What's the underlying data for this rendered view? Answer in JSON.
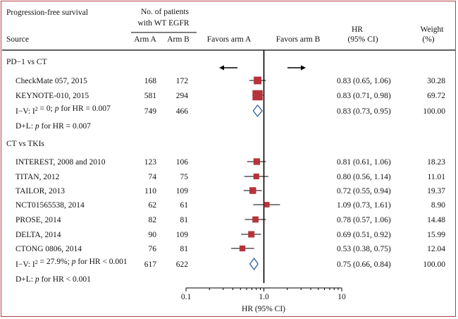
{
  "chart_data": {
    "type": "forest",
    "title": "Progression-free survival",
    "header": {
      "source": "Source",
      "patients_line1": "No. of  patients",
      "patients_line2": "with WT EGFR",
      "arm_a": "Arm A",
      "arm_b": "Arm B",
      "favors_a": "Favors arm A",
      "favors_b": "Favors arm B",
      "hr_line1": "HR",
      "hr_line2": "(95% CI)",
      "weight_line1": "Weight",
      "weight_line2": "(%)"
    },
    "groups": [
      {
        "name": "PD−1 vs CT",
        "studies": [
          {
            "name": "CheckMate 057, 2015",
            "arm_a": "168",
            "arm_b": "172",
            "hr": 0.83,
            "lo": 0.65,
            "hi": 1.06,
            "hr_text": "0.83 (0.65, 1.06)",
            "weight": 30.28,
            "weight_text": "30.28"
          },
          {
            "name": "KEYNOTE-010, 2015",
            "arm_a": "581",
            "arm_b": "294",
            "hr": 0.83,
            "lo": 0.71,
            "hi": 0.98,
            "hr_text": "0.83 (0.71, 0.98)",
            "weight": 69.72,
            "weight_text": "69.72"
          }
        ],
        "pooled": {
          "label": "I−V: I² = 0; p for HR = 0.007",
          "arm_a": "749",
          "arm_b": "466",
          "hr": 0.83,
          "lo": 0.73,
          "hi": 0.95,
          "hr_text": "0.83 (0.73, 0.95)",
          "weight_text": "100.00"
        },
        "dl": "D+L: p for HR = 0.007"
      },
      {
        "name": "CT vs TKIs",
        "studies": [
          {
            "name": "INTEREST, 2008 and 2010",
            "arm_a": "123",
            "arm_b": "106",
            "hr": 0.81,
            "lo": 0.61,
            "hi": 1.06,
            "hr_text": "0.81 (0.61, 1.06)",
            "weight": 18.23,
            "weight_text": "18.23"
          },
          {
            "name": "TITAN, 2012",
            "arm_a": "74",
            "arm_b": "75",
            "hr": 0.8,
            "lo": 0.56,
            "hi": 1.14,
            "hr_text": "0.80 (0.56, 1.14)",
            "weight": 11.01,
            "weight_text": "11.01"
          },
          {
            "name": "TAILOR, 2013",
            "arm_a": "110",
            "arm_b": "109",
            "hr": 0.72,
            "lo": 0.55,
            "hi": 0.94,
            "hr_text": "0.72 (0.55, 0.94)",
            "weight": 19.37,
            "weight_text": "19.37"
          },
          {
            "name": "NCT01565538, 2014",
            "arm_a": "62",
            "arm_b": "61",
            "hr": 1.09,
            "lo": 0.73,
            "hi": 1.61,
            "hr_text": "1.09 (0.73, 1.61)",
            "weight": 8.9,
            "weight_text": "8.90"
          },
          {
            "name": "PROSE, 2014",
            "arm_a": "82",
            "arm_b": "81",
            "hr": 0.78,
            "lo": 0.57,
            "hi": 1.06,
            "hr_text": "0.78 (0.57, 1.06)",
            "weight": 14.48,
            "weight_text": "14.48"
          },
          {
            "name": "DELTA, 2014",
            "arm_a": "90",
            "arm_b": "109",
            "hr": 0.69,
            "lo": 0.51,
            "hi": 0.92,
            "hr_text": "0.69 (0.51, 0.92)",
            "weight": 15.99,
            "weight_text": "15.99"
          },
          {
            "name": "CTONG 0806, 2014",
            "arm_a": "76",
            "arm_b": "81",
            "hr": 0.53,
            "lo": 0.38,
            "hi": 0.75,
            "hr_text": "0.53 (0.38, 0.75)",
            "weight": 12.04,
            "weight_text": "12.04"
          }
        ],
        "pooled": {
          "label": "I−V: I² = 27.9%; p for HR < 0.001",
          "arm_a": "617",
          "arm_b": "622",
          "hr": 0.75,
          "lo": 0.66,
          "hi": 0.84,
          "hr_text": "0.75 (0.66, 0.84)",
          "weight_text": "100.00"
        },
        "dl": "D+L: p for HR < 0.001"
      }
    ],
    "x_axis": {
      "label": "HR (95% CI)",
      "scale": "log",
      "range": [
        0.1,
        10
      ],
      "ticks": [
        0.1,
        1.0,
        10
      ],
      "tick_labels": [
        "0.1",
        "1.0",
        "10"
      ],
      "reference_line": 1.0
    },
    "colors": {
      "marker": "#b5343a",
      "diamond": "#2f5f9c",
      "frame": "#b5403f"
    }
  }
}
